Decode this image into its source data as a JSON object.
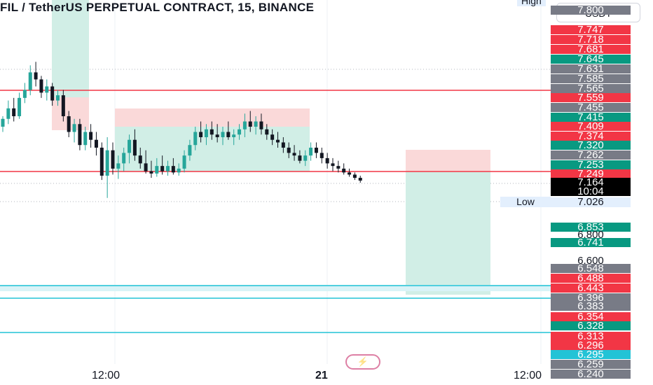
{
  "header": {
    "title": "FIL / TetherUS PERPETUAL CONTRACT, 15, BINANCE",
    "currency": "USDT"
  },
  "labels": {
    "high": "High",
    "low": "Low",
    "low_price": "7.026",
    "current_price": "7.164",
    "countdown": "10:04"
  },
  "colors": {
    "bull": "#26a69a",
    "bear": "#ef5350",
    "line_red": "#f23645",
    "line_cyan": "#22c3d6",
    "zone_green": "#d1eee6",
    "zone_red": "#fad9d9"
  },
  "price_labels": [
    {
      "text": "7.800",
      "bg": "#787b86"
    },
    {
      "text": "7.747",
      "bg": "#f23645"
    },
    {
      "text": "7.718",
      "bg": "#f23645"
    },
    {
      "text": "7.681",
      "bg": "#f23645"
    },
    {
      "text": "7.645",
      "bg": "#089981"
    },
    {
      "text": "7.631",
      "bg": "#787b86"
    },
    {
      "text": "7.585",
      "bg": "#787b86"
    },
    {
      "text": "7.565",
      "bg": "#787b86"
    },
    {
      "text": "7.559",
      "bg": "#f23645"
    },
    {
      "text": "7.455",
      "bg": "#787b86"
    },
    {
      "text": "7.415",
      "bg": "#089981"
    },
    {
      "text": "7.409",
      "bg": "#f23645"
    },
    {
      "text": "7.374",
      "bg": "#f23645"
    },
    {
      "text": "7.320",
      "bg": "#089981"
    },
    {
      "text": "7.262",
      "bg": "#787b86"
    },
    {
      "text": "7.253",
      "bg": "#089981"
    },
    {
      "text": "7.249",
      "bg": "#f23645"
    },
    {
      "text": "6.853",
      "bg": "#089981"
    },
    {
      "text": "6.800",
      "bg": "transparent"
    },
    {
      "text": "6.741",
      "bg": "#089981"
    },
    {
      "text": "6.600",
      "bg": "transparent"
    },
    {
      "text": "6.548",
      "bg": "#787b86"
    },
    {
      "text": "6.488",
      "bg": "#f23645"
    },
    {
      "text": "6.443",
      "bg": "#f23645"
    },
    {
      "text": "6.396",
      "bg": "#787b86"
    },
    {
      "text": "6.383",
      "bg": "#787b86"
    },
    {
      "text": "6.354",
      "bg": "#f23645"
    },
    {
      "text": "6.328",
      "bg": "#089981"
    },
    {
      "text": "6.313",
      "bg": "#f23645"
    },
    {
      "text": "6.296",
      "bg": "#f23645"
    },
    {
      "text": "6.295",
      "bg": "#22c3d6"
    },
    {
      "text": "6.259",
      "bg": "#787b86"
    },
    {
      "text": "6.240",
      "bg": "#787b86"
    }
  ],
  "time_labels": [
    {
      "text": "12:00",
      "bold": false
    },
    {
      "text": "21",
      "bold": true
    },
    {
      "text": "12:00",
      "bold": false
    }
  ],
  "chart_data": {
    "type": "candlestick",
    "symbol": "FIL / TetherUS PERPETUAL CONTRACT",
    "interval": "15",
    "exchange": "BINANCE",
    "y_range": [
      6.22,
      7.82
    ],
    "x_axis_labels": [
      "12:00",
      "21",
      "12:00"
    ],
    "horizontal_lines": [
      {
        "price": 7.559,
        "color": "red"
      },
      {
        "price": 7.249,
        "color": "red"
      },
      {
        "price": 6.443,
        "color": "cyan"
      },
      {
        "price": 6.396,
        "color": "cyan"
      },
      {
        "price": 6.295,
        "color": "cyan"
      }
    ],
    "candles": [
      [
        7.42,
        7.46,
        7.4,
        7.45
      ],
      [
        7.45,
        7.52,
        7.43,
        7.49
      ],
      [
        7.49,
        7.53,
        7.44,
        7.46
      ],
      [
        7.46,
        7.55,
        7.45,
        7.53
      ],
      [
        7.53,
        7.58,
        7.51,
        7.56
      ],
      [
        7.56,
        7.63,
        7.54,
        7.61
      ],
      [
        7.61,
        7.64,
        7.57,
        7.59
      ],
      [
        7.59,
        7.6,
        7.53,
        7.55
      ],
      [
        7.55,
        7.59,
        7.52,
        7.57
      ],
      [
        7.57,
        7.58,
        7.5,
        7.52
      ],
      [
        7.52,
        7.56,
        7.5,
        7.54
      ],
      [
        7.54,
        7.56,
        7.44,
        7.46
      ],
      [
        7.46,
        7.48,
        7.38,
        7.4
      ],
      [
        7.4,
        7.45,
        7.36,
        7.43
      ],
      [
        7.43,
        7.45,
        7.33,
        7.35
      ],
      [
        7.35,
        7.42,
        7.33,
        7.4
      ],
      [
        7.4,
        7.43,
        7.34,
        7.37
      ],
      [
        7.37,
        7.4,
        7.31,
        7.34
      ],
      [
        7.34,
        7.36,
        7.17,
        7.21
      ],
      [
        7.21,
        7.38,
        7.05,
        7.33
      ],
      [
        7.33,
        7.36,
        7.22,
        7.26
      ],
      [
        7.26,
        7.31,
        7.18,
        7.28
      ],
      [
        7.28,
        7.34,
        7.25,
        7.32
      ],
      [
        7.32,
        7.39,
        7.28,
        7.37
      ],
      [
        7.37,
        7.41,
        7.29,
        7.31
      ],
      [
        7.31,
        7.34,
        7.26,
        7.28
      ],
      [
        7.28,
        7.33,
        7.23,
        7.25
      ],
      [
        7.25,
        7.29,
        7.19,
        7.23
      ],
      [
        7.23,
        7.3,
        7.2,
        7.27
      ],
      [
        7.27,
        7.31,
        7.22,
        7.25
      ],
      [
        7.25,
        7.29,
        7.21,
        7.27
      ],
      [
        7.27,
        7.3,
        7.22,
        7.24
      ],
      [
        7.24,
        7.28,
        7.21,
        7.26
      ],
      [
        7.26,
        7.33,
        7.24,
        7.31
      ],
      [
        7.31,
        7.37,
        7.29,
        7.35
      ],
      [
        7.35,
        7.42,
        7.33,
        7.4
      ],
      [
        7.4,
        7.44,
        7.36,
        7.38
      ],
      [
        7.38,
        7.43,
        7.35,
        7.41
      ],
      [
        7.41,
        7.44,
        7.37,
        7.39
      ],
      [
        7.39,
        7.43,
        7.36,
        7.38
      ],
      [
        7.38,
        7.42,
        7.35,
        7.4
      ],
      [
        7.4,
        7.44,
        7.37,
        7.38
      ],
      [
        7.38,
        7.41,
        7.35,
        7.39
      ],
      [
        7.39,
        7.43,
        7.37,
        7.41
      ],
      [
        7.41,
        7.47,
        7.38,
        7.44
      ],
      [
        7.44,
        7.48,
        7.4,
        7.42
      ],
      [
        7.42,
        7.46,
        7.39,
        7.44
      ],
      [
        7.44,
        7.47,
        7.39,
        7.41
      ],
      [
        7.41,
        7.43,
        7.37,
        7.39
      ],
      [
        7.39,
        7.41,
        7.35,
        7.37
      ],
      [
        7.37,
        7.4,
        7.34,
        7.36
      ],
      [
        7.36,
        7.38,
        7.32,
        7.34
      ],
      [
        7.34,
        7.36,
        7.3,
        7.32
      ],
      [
        7.32,
        7.35,
        7.29,
        7.31
      ],
      [
        7.31,
        7.33,
        7.28,
        7.29
      ],
      [
        7.29,
        7.33,
        7.27,
        7.31
      ],
      [
        7.31,
        7.36,
        7.29,
        7.34
      ],
      [
        7.34,
        7.36,
        7.3,
        7.32
      ],
      [
        7.32,
        7.34,
        7.28,
        7.3
      ],
      [
        7.3,
        7.32,
        7.26,
        7.28
      ],
      [
        7.28,
        7.3,
        7.25,
        7.27
      ],
      [
        7.27,
        7.29,
        7.24,
        7.26
      ],
      [
        7.26,
        7.28,
        7.22,
        7.24
      ],
      [
        7.24,
        7.26,
        7.2,
        7.22
      ],
      [
        7.22,
        7.24,
        7.17,
        7.19
      ],
      [
        7.19,
        7.21,
        7.15,
        7.164
      ]
    ],
    "positions": [
      {
        "type": "short",
        "entry": 7.559,
        "stop": 7.63,
        "target": 7.33
      },
      {
        "type": "long",
        "entry": 7.35,
        "stop": 7.455,
        "target": 7.25
      },
      {
        "type": "short",
        "entry": 7.249,
        "stop": 7.32,
        "target": 6.396
      }
    ]
  }
}
